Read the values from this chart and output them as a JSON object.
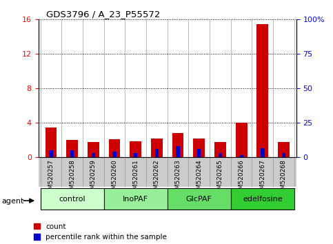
{
  "title": "GDS3796 / A_23_P55572",
  "samples": [
    "GSM520257",
    "GSM520258",
    "GSM520259",
    "GSM520260",
    "GSM520261",
    "GSM520262",
    "GSM520263",
    "GSM520264",
    "GSM520265",
    "GSM520266",
    "GSM520267",
    "GSM520268"
  ],
  "count_values": [
    3.5,
    2.0,
    1.8,
    2.1,
    1.9,
    2.2,
    2.8,
    2.2,
    1.8,
    4.0,
    15.5,
    1.8
  ],
  "percentile_values": [
    5.0,
    5.0,
    3.0,
    4.0,
    3.0,
    6.0,
    8.0,
    6.0,
    3.0,
    1.5,
    6.5,
    3.0
  ],
  "left_ylim": [
    0,
    16
  ],
  "left_yticks": [
    0,
    4,
    8,
    12,
    16
  ],
  "right_ylim": [
    0,
    100
  ],
  "right_yticks": [
    0,
    25,
    50,
    75,
    100
  ],
  "right_yticklabels": [
    "0",
    "25",
    "50",
    "75",
    "100%"
  ],
  "count_color": "#cc0000",
  "percentile_color": "#0000cc",
  "groups": [
    {
      "label": "control",
      "start": 0,
      "end": 2,
      "color": "#ccffcc"
    },
    {
      "label": "InoPAF",
      "start": 3,
      "end": 5,
      "color": "#99ee99"
    },
    {
      "label": "GlcPAF",
      "start": 6,
      "end": 8,
      "color": "#66dd66"
    },
    {
      "label": "edelfosine",
      "start": 9,
      "end": 11,
      "color": "#33cc33"
    }
  ],
  "agent_label": "agent",
  "legend_count_label": "count",
  "legend_percentile_label": "percentile rank within the sample",
  "sample_bg_color": "#cccccc",
  "plot_bg": "#ffffff"
}
